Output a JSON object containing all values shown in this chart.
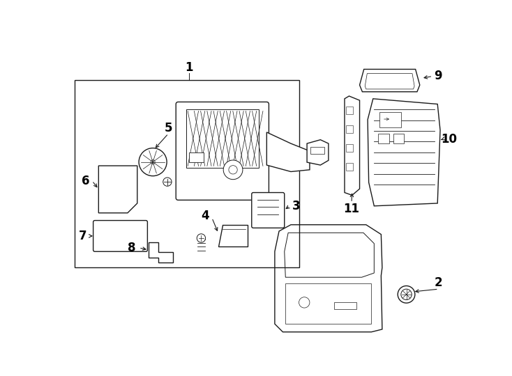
{
  "bg_color": "#ffffff",
  "lc": "#1a1a1a",
  "figsize": [
    7.34,
    5.4
  ],
  "dpi": 100,
  "label_style": "plain_bold",
  "label_fontsize": 12
}
